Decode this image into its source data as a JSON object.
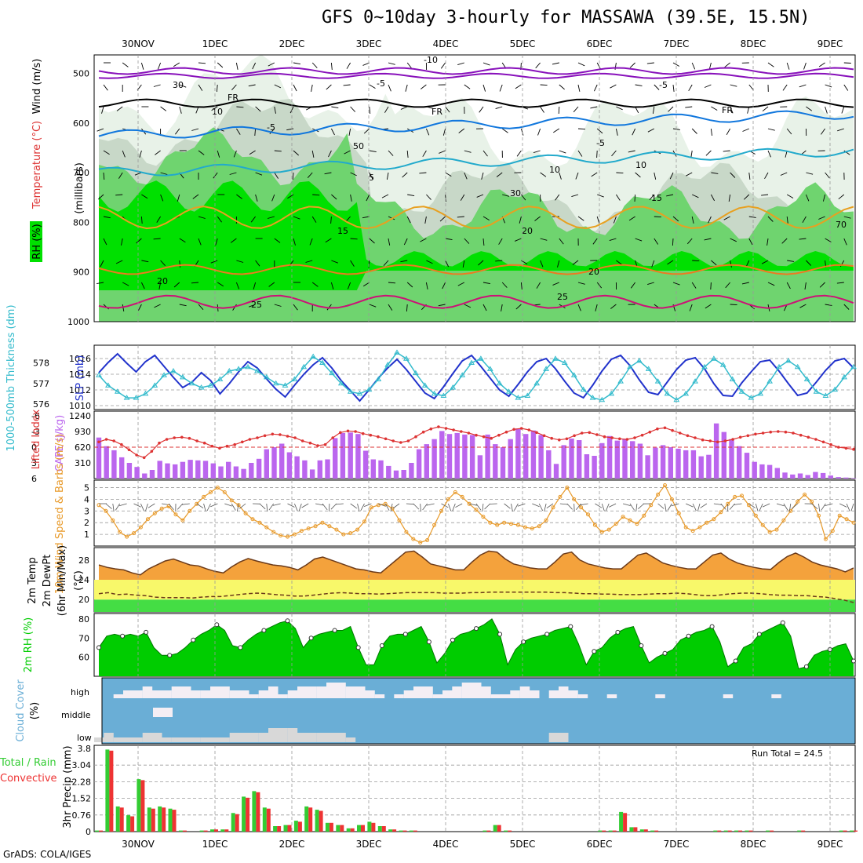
{
  "title": "GFS 0~10day 3-hourly for MASSAWA (39.5E, 15.5N)",
  "credit": "GrADS: COLA/IGES",
  "dates": [
    "30NOV",
    "1DEC",
    "2DEC",
    "3DEC",
    "4DEC",
    "5DEC",
    "6DEC",
    "7DEC",
    "8DEC",
    "9DEC"
  ],
  "colors": {
    "rh_green": "#00e000",
    "rh_mid": "#6fd46f",
    "rh_light": "#e8f2e8",
    "slp": "#2233cc",
    "thickness": "#33bbcc",
    "lifted": "#dd3333",
    "cape": "#bb66ee",
    "wind": "#e89a2a",
    "temp": "#f4a23c",
    "dewpt_band": "#f8f86a",
    "rh2m": "#00cc00",
    "cloud_bg": "#6aaed6",
    "cloud_fill": "#f4eef4",
    "rain_total": "#33cc33",
    "rain_conv": "#ee3333"
  },
  "chart_data": [
    {
      "type": "heatmap",
      "name_text": "RH (%) / Temperature (°C) / Wind (m/s)",
      "ylabel_main": "(millibars)",
      "rh_label": "RH (%)",
      "temp_label": "Temperature (°C)",
      "wind_label": "Wind (m/s)",
      "y_ticks": [
        "500",
        "600",
        "700",
        "800",
        "900",
        "1000"
      ],
      "ylim": [
        450,
        1000
      ],
      "isotherm_labels": [
        "-10",
        "-5",
        "-5",
        "FR",
        "FR",
        "FR",
        "-5",
        "-5",
        "5",
        "10",
        "10",
        "15",
        "15",
        "20",
        "20",
        "20",
        "25",
        "25"
      ],
      "rh_labels": [
        "10",
        "30",
        "30",
        "50",
        "70"
      ]
    },
    {
      "type": "line",
      "ylabel_left": "1000-500mb Thickness (dm)",
      "ylabel_right": "SLP (mb)",
      "left_ticks": [
        "578",
        "577",
        "576"
      ],
      "right_ticks": [
        "1016",
        "1014",
        "1012",
        "1010"
      ],
      "series": [
        {
          "name": "SLP (mb)",
          "values": [
            1014.2,
            1015.5,
            1016.6,
            1015.4,
            1014.3,
            1015.6,
            1016.4,
            1015.0,
            1013.6,
            1012.3,
            1013.0,
            1014.2,
            1013.2,
            1011.5,
            1012.8,
            1014.3,
            1015.6,
            1014.8,
            1013.4,
            1012.1,
            1011.1,
            1012.6,
            1014.0,
            1015.2,
            1016.1,
            1014.8,
            1013.2,
            1011.9,
            1010.6,
            1012.0,
            1013.5,
            1014.8,
            1015.9,
            1014.6,
            1013.1,
            1011.6,
            1010.9,
            1012.4,
            1014.1,
            1015.7,
            1016.4,
            1015.0,
            1013.5,
            1012.0,
            1011.2,
            1012.7,
            1014.3,
            1015.6,
            1016.0,
            1014.7,
            1013.1,
            1011.6,
            1011.0,
            1012.6,
            1014.4,
            1015.9,
            1016.4,
            1015.1,
            1013.3,
            1011.7,
            1011.4,
            1013.0,
            1014.6,
            1015.8,
            1016.1,
            1014.7,
            1012.8,
            1011.3,
            1011.2,
            1012.9,
            1014.3,
            1015.6,
            1015.8,
            1014.4,
            1012.8,
            1011.3,
            1011.6,
            1013.0,
            1014.5,
            1015.7,
            1016.0,
            1014.8
          ]
        },
        {
          "name": "Thickness (dm)",
          "values": [
            577.4,
            576.9,
            576.6,
            576.3,
            576.3,
            576.5,
            576.9,
            577.4,
            577.6,
            577.3,
            577.0,
            576.8,
            576.9,
            577.2,
            577.6,
            577.7,
            577.8,
            577.6,
            577.3,
            577.0,
            576.9,
            577.2,
            577.8,
            578.3,
            578.0,
            577.5,
            577.0,
            576.6,
            576.5,
            576.7,
            577.2,
            577.9,
            578.5,
            578.2,
            577.5,
            576.9,
            576.5,
            576.4,
            576.8,
            577.4,
            578.0,
            578.2,
            577.7,
            577.0,
            576.6,
            576.3,
            576.4,
            577.0,
            577.7,
            578.2,
            578.0,
            577.4,
            576.7,
            576.3,
            576.2,
            576.5,
            577.1,
            577.8,
            578.1,
            577.7,
            577.1,
            576.5,
            576.2,
            576.5,
            577.1,
            577.8,
            578.2,
            577.9,
            577.2,
            576.6,
            576.3,
            576.5,
            577.1,
            577.8,
            578.1,
            577.8,
            577.2,
            576.6,
            576.4,
            576.7,
            577.3,
            577.8
          ]
        }
      ]
    },
    {
      "type": "bar",
      "ylabel_left": "Lifted Index",
      "ylabel_right": "CAPE (J/kg)",
      "left_ticks": [
        "-6",
        "-3",
        "0",
        "3",
        "6"
      ],
      "right_ticks": [
        "1240",
        "930",
        "620",
        "310"
      ],
      "cape": [
        810,
        640,
        560,
        420,
        310,
        230,
        100,
        170,
        350,
        300,
        280,
        330,
        370,
        360,
        350,
        300,
        240,
        330,
        240,
        190,
        310,
        390,
        580,
        620,
        690,
        520,
        440,
        360,
        180,
        360,
        380,
        800,
        900,
        910,
        880,
        550,
        380,
        360,
        250,
        160,
        170,
        310,
        580,
        680,
        780,
        940,
        880,
        900,
        870,
        860,
        460,
        870,
        680,
        620,
        780,
        990,
        880,
        950,
        860,
        560,
        290,
        660,
        790,
        760,
        480,
        450,
        700,
        840,
        750,
        780,
        740,
        690,
        460,
        610,
        660,
        620,
        590,
        560,
        560,
        440,
        470,
        1090,
        920,
        780,
        640,
        510,
        330,
        280,
        270,
        210,
        120,
        80,
        100,
        70,
        130,
        110,
        60,
        30,
        20,
        10
      ],
      "lifted_index": [
        -1.0,
        -1.5,
        -1.2,
        -0.5,
        0.5,
        1.5,
        2.0,
        0.8,
        -0.8,
        -1.5,
        -1.8,
        -1.9,
        -1.7,
        -1.2,
        -0.8,
        -0.2,
        0.2,
        -0.2,
        -0.5,
        -1.0,
        -1.5,
        -1.8,
        -2.2,
        -2.5,
        -2.4,
        -2.1,
        -1.8,
        -1.2,
        -0.8,
        -0.3,
        -0.5,
        -1.8,
        -2.8,
        -3.1,
        -3.0,
        -2.6,
        -2.3,
        -2.0,
        -1.6,
        -1.2,
        -0.9,
        -1.2,
        -2.0,
        -2.9,
        -3.5,
        -3.9,
        -3.6,
        -3.3,
        -3.0,
        -2.7,
        -2.3,
        -2.0,
        -1.7,
        -2.3,
        -2.9,
        -3.4,
        -3.6,
        -3.3,
        -2.8,
        -2.2,
        -1.7,
        -1.4,
        -1.6,
        -2.2,
        -2.7,
        -2.8,
        -2.4,
        -2.0,
        -1.8,
        -1.6,
        -1.5,
        -1.8,
        -2.3,
        -2.9,
        -3.5,
        -3.7,
        -3.2,
        -2.7,
        -2.2,
        -1.8,
        -1.4,
        -1.2,
        -1.0,
        -1.2,
        -1.5,
        -1.9,
        -2.2,
        -2.5,
        -2.7,
        -2.9,
        -3.0,
        -2.9,
        -2.7,
        -2.3,
        -1.9,
        -1.5,
        -1.0,
        -0.5,
        0.0,
        0.2,
        0.4
      ]
    },
    {
      "type": "line",
      "ylabel": "10m Wind Speed & Barbs (m/s)",
      "y_ticks": [
        "5",
        "4",
        "3",
        "2",
        "1"
      ],
      "values": [
        3.5,
        3.0,
        2.2,
        1.2,
        0.8,
        1.1,
        1.6,
        2.3,
        2.8,
        3.2,
        3.4,
        2.7,
        2.2,
        3.0,
        3.6,
        4.2,
        4.6,
        5.0,
        4.6,
        3.9,
        3.5,
        2.8,
        2.3,
        2.0,
        1.6,
        1.2,
        0.9,
        0.8,
        1.0,
        1.3,
        1.5,
        1.7,
        2.0,
        1.7,
        1.4,
        1.0,
        1.1,
        1.4,
        2.1,
        3.3,
        3.5,
        3.6,
        3.2,
        2.2,
        1.2,
        0.6,
        0.3,
        0.5,
        1.8,
        3.0,
        4.0,
        4.6,
        4.2,
        3.6,
        3.1,
        2.5,
        2.0,
        1.8,
        2.0,
        1.9,
        1.8,
        1.6,
        1.5,
        1.7,
        2.2,
        3.3,
        4.2,
        5.0,
        4.0,
        3.3,
        2.7,
        1.8,
        1.2,
        1.4,
        1.9,
        2.5,
        2.2,
        1.9,
        2.6,
        3.5,
        4.4,
        5.2,
        4.0,
        2.8,
        1.6,
        1.3,
        1.6,
        2.0,
        2.3,
        2.9,
        3.6,
        4.2,
        4.3,
        3.5,
        2.6,
        1.8,
        1.2,
        1.4,
        2.2,
        3.0,
        3.8,
        4.4,
        3.8,
        2.6,
        0.6,
        1.3,
        2.6,
        2.3,
        2.0
      ]
    },
    {
      "type": "area",
      "ylabel": "2m Temp 2m DewPt (6hr Min/Max) (°C)",
      "y_ticks": [
        "28",
        "24",
        "20"
      ],
      "temp": [
        27.0,
        26.5,
        26.2,
        26.0,
        25.4,
        25.0,
        26.2,
        27.0,
        27.8,
        28.2,
        27.6,
        27.0,
        26.8,
        26.2,
        25.7,
        25.4,
        26.6,
        27.6,
        28.3,
        27.8,
        27.4,
        27.0,
        26.8,
        26.5,
        26.0,
        27.0,
        28.2,
        28.6,
        28.0,
        27.4,
        26.8,
        26.2,
        26.0,
        25.6,
        25.4,
        26.8,
        28.2,
        29.6,
        29.8,
        28.6,
        27.2,
        26.8,
        26.4,
        26.0,
        26.0,
        27.6,
        29.0,
        29.8,
        29.6,
        28.2,
        27.2,
        26.8,
        26.4,
        26.2,
        26.2,
        27.6,
        29.2,
        29.6,
        28.0,
        27.2,
        26.8,
        26.4,
        26.2,
        26.2,
        27.6,
        29.0,
        29.4,
        28.4,
        27.4,
        26.9,
        26.5,
        26.2,
        26.2,
        27.6,
        29.0,
        29.4,
        28.2,
        27.4,
        26.9,
        26.5,
        26.2,
        26.1,
        27.5,
        28.7,
        29.4,
        28.6,
        27.6,
        27.0,
        26.6,
        26.2,
        25.6,
        26.4
      ],
      "dewpt": [
        21.2,
        21.4,
        21.0,
        21.1,
        20.9,
        20.8,
        20.5,
        20.4,
        20.4,
        20.4,
        20.3,
        20.5,
        20.6,
        20.6,
        20.8,
        21.0,
        21.2,
        21.3,
        21.2,
        21.0,
        20.9,
        20.7,
        20.7,
        20.9,
        21.1,
        21.3,
        21.4,
        21.3,
        21.2,
        21.2,
        21.1,
        21.2,
        21.3,
        21.4,
        21.4,
        21.4,
        21.4,
        21.3,
        21.3,
        21.3,
        21.4,
        21.4,
        21.5,
        21.5,
        21.5,
        21.5,
        21.5,
        21.5,
        21.5,
        21.4,
        21.4,
        21.3,
        21.2,
        21.2,
        21.1,
        21.1,
        21.0,
        21.0,
        21.0,
        21.1,
        21.2,
        21.2,
        21.3,
        21.2,
        21.0,
        20.8,
        20.8,
        21.0,
        21.2,
        21.3,
        21.3,
        21.2,
        21.0,
        20.9,
        20.9,
        20.8,
        20.8,
        20.6,
        20.5,
        20.2,
        19.9,
        19.4
      ]
    },
    {
      "type": "area",
      "ylabel": "2m RH (%)",
      "y_ticks": [
        "80",
        "70",
        "60"
      ],
      "values": [
        65,
        71,
        72,
        71,
        72,
        71,
        73,
        65,
        61,
        61,
        62,
        65,
        69,
        72,
        74,
        77,
        74,
        66,
        65,
        69,
        72,
        74,
        76,
        78,
        79,
        75,
        65,
        70,
        72,
        73,
        74,
        74,
        76,
        65,
        56,
        56,
        66,
        71,
        72,
        72,
        74,
        76,
        68,
        57,
        62,
        69,
        72,
        73,
        75,
        77,
        80,
        72,
        56,
        64,
        68,
        70,
        71,
        72,
        74,
        75,
        76,
        67,
        56,
        63,
        65,
        70,
        73,
        75,
        76,
        66,
        57,
        60,
        62,
        64,
        69,
        71,
        73,
        74,
        76,
        68,
        55,
        58,
        65,
        67,
        72,
        74,
        76,
        78,
        71,
        54,
        55,
        61,
        63,
        64,
        66,
        67,
        58
      ]
    },
    {
      "type": "bar",
      "ylabel": "Cloud Cover (%)",
      "levels": [
        "high",
        "middle",
        "low"
      ]
    },
    {
      "type": "bar",
      "ylabel_left": "Total / Rain",
      "ylabel_left2": "Convective",
      "ylabel": "3hr Precip (mm)",
      "y_ticks": [
        "3.8",
        "3.04",
        "2.28",
        "1.52",
        "0.76",
        "0"
      ],
      "run_total": "Run Total = 24.5",
      "total": [
        0.05,
        3.75,
        1.15,
        0.75,
        2.4,
        1.1,
        1.15,
        1.05,
        0.05,
        0,
        0.05,
        0.1,
        0.1,
        0.85,
        1.6,
        1.85,
        1.1,
        0.25,
        0.3,
        0.5,
        1.15,
        1.0,
        0.4,
        0.3,
        0.15,
        0.3,
        0.45,
        0.25,
        0.1,
        0.05,
        0.05,
        0,
        0,
        0,
        0,
        0,
        0,
        0.05,
        0.3,
        0.05,
        0,
        0,
        0,
        0,
        0,
        0,
        0,
        0,
        0.05,
        0.05,
        0.9,
        0.2,
        0.1,
        0.05,
        0,
        0,
        0,
        0,
        0,
        0.05,
        0.05,
        0.05,
        0.05,
        0,
        0.05,
        0,
        0,
        0.05,
        0,
        0,
        0,
        0.05,
        0.05
      ],
      "convective": [
        0.05,
        3.7,
        1.1,
        0.7,
        2.35,
        1.05,
        1.1,
        1.0,
        0.05,
        0,
        0.05,
        0.1,
        0.1,
        0.8,
        1.55,
        1.8,
        1.05,
        0.25,
        0.3,
        0.45,
        1.1,
        0.95,
        0.4,
        0.3,
        0.15,
        0.3,
        0.4,
        0.25,
        0.1,
        0.05,
        0.05,
        0,
        0,
        0,
        0,
        0,
        0,
        0.05,
        0.3,
        0.05,
        0,
        0,
        0,
        0,
        0,
        0,
        0,
        0,
        0.05,
        0.05,
        0.85,
        0.2,
        0.1,
        0.05,
        0,
        0,
        0,
        0,
        0,
        0.05,
        0.05,
        0.05,
        0.05,
        0,
        0.05,
        0,
        0,
        0.05,
        0,
        0,
        0,
        0.05,
        0.05
      ]
    }
  ]
}
